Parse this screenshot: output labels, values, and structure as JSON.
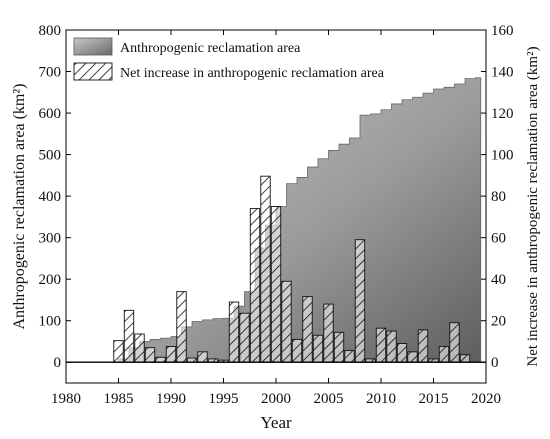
{
  "chart_data": {
    "type": "bar",
    "xlabel": "Year",
    "ylabel_left": "Anthropogenic reclamation area (km²)",
    "ylabel_right": "Net increase in anthropogenic reclamation area (km²)",
    "xlim": [
      1980,
      2020
    ],
    "ylim_left": [
      -50,
      800
    ],
    "ylim_right": [
      -10,
      160
    ],
    "x_ticks": [
      1980,
      1985,
      1990,
      1995,
      2000,
      2005,
      2010,
      2015,
      2020
    ],
    "x_tick_labels": [
      "1980",
      "1985",
      "1990",
      "1995",
      "2000",
      "2005",
      "2010",
      "2015",
      "2020"
    ],
    "y_left_ticks": [
      0,
      100,
      200,
      300,
      400,
      500,
      600,
      700,
      800
    ],
    "y_left_tick_labels": [
      "0",
      "100",
      "200",
      "300",
      "400",
      "500",
      "600",
      "700",
      "800"
    ],
    "y_right_ticks": [
      0,
      20,
      40,
      60,
      80,
      100,
      120,
      140,
      160
    ],
    "y_right_tick_labels": [
      "0",
      "20",
      "40",
      "60",
      "80",
      "100",
      "120",
      "140",
      "160"
    ],
    "legend": {
      "position": "top-left",
      "area_label": "Anthropogenic reclamation area",
      "bar_label": "Net increase in anthropogenic reclamation area"
    },
    "series": [
      {
        "name": "Anthropogenic reclamation area",
        "kind": "area",
        "axis": "left",
        "x": [
          1984,
          1985,
          1986,
          1987,
          1988,
          1989,
          1990,
          1991,
          1992,
          1993,
          1994,
          1995,
          1996,
          1997,
          1998,
          1999,
          2000,
          2001,
          2002,
          2003,
          2004,
          2005,
          2006,
          2007,
          2008,
          2009,
          2010,
          2011,
          2012,
          2013,
          2014,
          2015,
          2016,
          2017,
          2018,
          2019
        ],
        "values": [
          0,
          8,
          35,
          50,
          55,
          58,
          62,
          85,
          98,
          102,
          105,
          106,
          135,
          170,
          275,
          330,
          375,
          430,
          445,
          470,
          490,
          510,
          525,
          540,
          595,
          598,
          608,
          622,
          632,
          638,
          648,
          658,
          662,
          670,
          683,
          685
        ]
      },
      {
        "name": "Net increase in anthropogenic reclamation area",
        "kind": "bar",
        "axis": "left",
        "x": [
          1985,
          1986,
          1987,
          1988,
          1989,
          1990,
          1991,
          1992,
          1993,
          1994,
          1995,
          1996,
          1997,
          1998,
          1999,
          2000,
          2001,
          2002,
          2003,
          2004,
          2005,
          2006,
          2007,
          2008,
          2009,
          2010,
          2011,
          2012,
          2013,
          2014,
          2015,
          2016,
          2017,
          2018
        ],
        "values": [
          52,
          125,
          68,
          35,
          12,
          38,
          170,
          10,
          25,
          8,
          5,
          145,
          118,
          370,
          448,
          375,
          195,
          55,
          158,
          65,
          140,
          72,
          28,
          295,
          8,
          82,
          75,
          45,
          25,
          78,
          8,
          38,
          95,
          18
        ]
      }
    ]
  }
}
